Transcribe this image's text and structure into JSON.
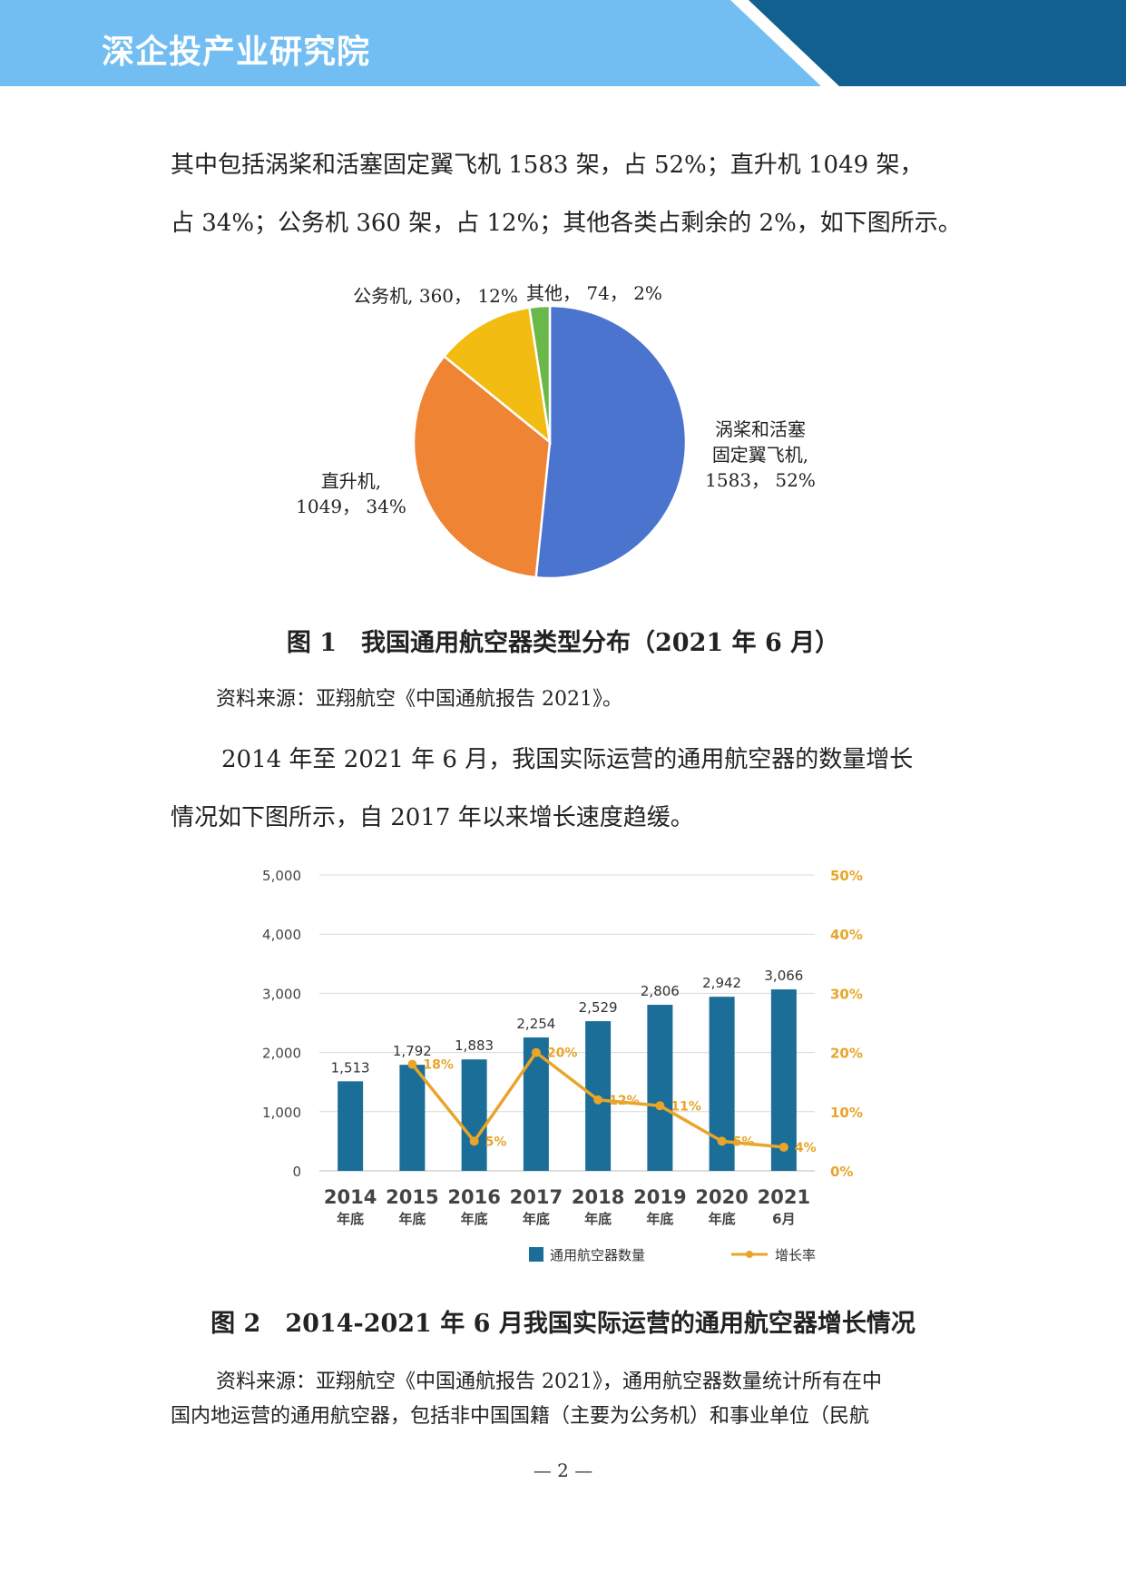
{
  "header": {
    "brand": "深企投产业研究院",
    "colors": {
      "light": "#72BEF2",
      "dark": "#11608F"
    }
  },
  "para1": {
    "lines": [
      "其中包括涡桨和活塞固定翼飞机 1583 架，占 52%；直升机 1049 架，",
      "占 34%；公务机 360 架，占 12%；其他各类占剩余的 2%，如下图所示。"
    ]
  },
  "pie": {
    "caption": "图 1　我国通用航空器类型分布（2021 年 6 月）",
    "source": "资料来源：亚翔航空《中国通航报告 2021》。",
    "chart_data": {
      "type": "pie",
      "slices": [
        {
          "name": "涡桨和活塞固定翼飞机",
          "value": 1583,
          "percent": 52,
          "color": "#4A74CE",
          "label_lines": [
            "涡桨和活塞",
            "固定翼飞机,",
            "1583， 52%"
          ]
        },
        {
          "name": "直升机",
          "value": 1049,
          "percent": 34,
          "color": "#EE8434",
          "label_lines": [
            "直升机,",
            "1049， 34%"
          ]
        },
        {
          "name": "公务机",
          "value": 360,
          "percent": 12,
          "color": "#F2BC12",
          "label_lines": [
            "公务机, 360， 12%"
          ]
        },
        {
          "name": "其他",
          "value": 74,
          "percent": 2,
          "color": "#6BB84A",
          "label_lines": [
            "其他， 74， 2%"
          ]
        }
      ]
    }
  },
  "para2": {
    "lines": [
      "2014 年至 2021 年 6 月，我国实际运营的通用航空器的数量增长",
      "情况如下图所示，自 2017 年以来增长速度趋缓。"
    ]
  },
  "bar": {
    "caption": "图 2　2014-2021 年 6 月我国实际运营的通用航空器增长情况",
    "source_lines": [
      "资料来源：亚翔航空《中国通航报告 2021》，通用航空器数量统计所有在中",
      "国内地运营的通用航空器，包括非中国国籍（主要为公务机）和事业单位（民航"
    ],
    "chart_data": {
      "type": "bar",
      "categories": [
        "2014",
        "2015",
        "2016",
        "2017",
        "2018",
        "2019",
        "2020",
        "2021"
      ],
      "category_sublabels": [
        "年底",
        "年底",
        "年底",
        "年底",
        "年底",
        "年底",
        "年底",
        "6月"
      ],
      "series": [
        {
          "name": "通用航空器数量",
          "type": "bar",
          "color": "#1A6E97",
          "values": [
            1513,
            1792,
            1883,
            2254,
            2529,
            2806,
            2942,
            3066
          ],
          "value_labels": [
            "1,513",
            "1,792",
            "1,883",
            "2,254",
            "2,529",
            "2,806",
            "2,942",
            "3,066"
          ]
        },
        {
          "name": "增长率",
          "type": "line",
          "color": "#E8A52A",
          "axis": "right",
          "values": [
            null,
            18,
            5,
            20,
            12,
            11,
            5,
            4
          ],
          "value_labels": [
            "",
            "18%",
            "5%",
            "20%",
            "12%",
            "11%",
            "5%",
            "4%"
          ]
        }
      ],
      "left_ticks": [
        "0",
        "1,000",
        "2,000",
        "3,000",
        "4,000",
        "5,000"
      ],
      "right_ticks": [
        "0%",
        "10%",
        "20%",
        "30%",
        "40%",
        "50%"
      ],
      "ylim": [
        0,
        5000
      ],
      "y2lim": [
        0,
        50
      ],
      "grid": true,
      "legend": "bottom"
    }
  },
  "footer": {
    "page": "— 2 —"
  }
}
